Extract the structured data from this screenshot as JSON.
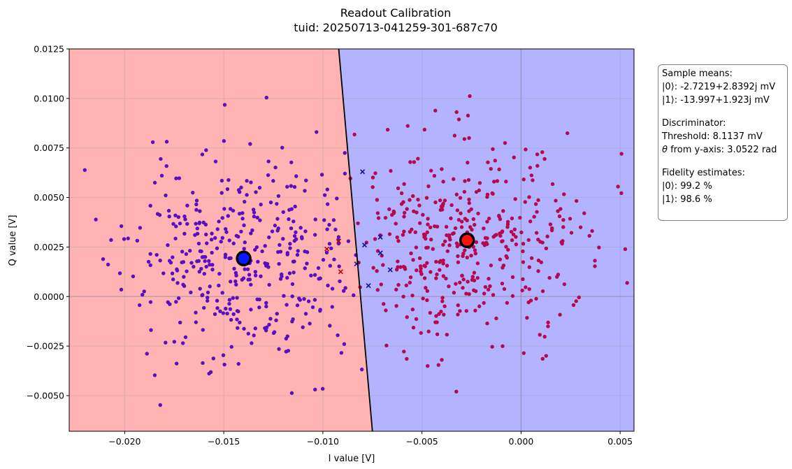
{
  "chart_data": {
    "type": "scatter",
    "title": "Readout Calibration",
    "subtitle": "tuid: 20250713-041259-301-687c70",
    "xlabel": "I value [V]",
    "ylabel": "Q value [V]",
    "xlim": [
      -0.0228,
      0.0057
    ],
    "ylim": [
      -0.0068,
      0.0125
    ],
    "xticks": [
      -0.02,
      -0.015,
      -0.01,
      -0.005,
      0.0,
      0.005
    ],
    "xtick_labels": [
      "−0.020",
      "−0.015",
      "−0.010",
      "−0.005",
      "0.000",
      "0.005"
    ],
    "yticks": [
      -0.005,
      -0.0025,
      0.0,
      0.0025,
      0.005,
      0.0075,
      0.01,
      0.0125
    ],
    "ytick_labels": [
      "−0.0050",
      "−0.0025",
      "0.0000",
      "0.0025",
      "0.0050",
      "0.0075",
      "0.0100",
      "0.0125"
    ],
    "grid": true,
    "colors": {
      "region_0": "#ffb3b3",
      "region_1": "#b3b3ff",
      "points_state_0": "#5a0fbf",
      "points_state_1": "#b5094d",
      "misclassified_0": "#c00000",
      "misclassified_1": "#1010a0",
      "boundary": "#000000"
    },
    "boundary_line": [
      [
        -0.0092,
        0.0125
      ],
      [
        -0.0075,
        -0.0068
      ]
    ],
    "means": [
      {
        "x": -0.013997,
        "y": 0.001923,
        "color": "#0a18ff"
      },
      {
        "x": -0.0027219,
        "y": 0.0028392,
        "color": "#ff1010"
      }
    ],
    "clusters": [
      {
        "center": [
          -0.013997,
          0.001923
        ],
        "sigma": [
          0.003,
          0.0026
        ],
        "count": 420,
        "seed": 11,
        "color": "#5a0fbf"
      },
      {
        "center": [
          -0.0027219,
          0.0028392
        ],
        "sigma": [
          0.003,
          0.0025
        ],
        "count": 420,
        "seed": 29,
        "color": "#b5094d"
      }
    ],
    "misclassified_0": [
      [
        -0.0098,
        0.0024
      ],
      [
        -0.0092,
        0.0028
      ],
      [
        -0.0091,
        0.00125
      ]
    ],
    "misclassified_1": [
      [
        -0.008,
        0.0063
      ],
      [
        -0.0079,
        0.0026
      ],
      [
        -0.0083,
        0.00165
      ],
      [
        -0.0077,
        0.00055
      ],
      [
        -0.0071,
        0.003
      ],
      [
        -0.0071,
        0.0022
      ],
      [
        -0.0066,
        0.00135
      ]
    ]
  },
  "info_box": {
    "line1": "Sample means:",
    "line2": "|0⟩: -2.7219+2.8392j mV",
    "line3": "|1⟩: -13.997+1.923j mV",
    "line4": "Discriminator:",
    "line5": "Threshold: 8.1137 mV",
    "line6_sym": "θ",
    "line6_rest": " from y-axis: 3.0522 rad",
    "line7": "Fidelity estimates:",
    "line8": "|0⟩: 99.2 %",
    "line9": "|1⟩: 98.6 %"
  }
}
